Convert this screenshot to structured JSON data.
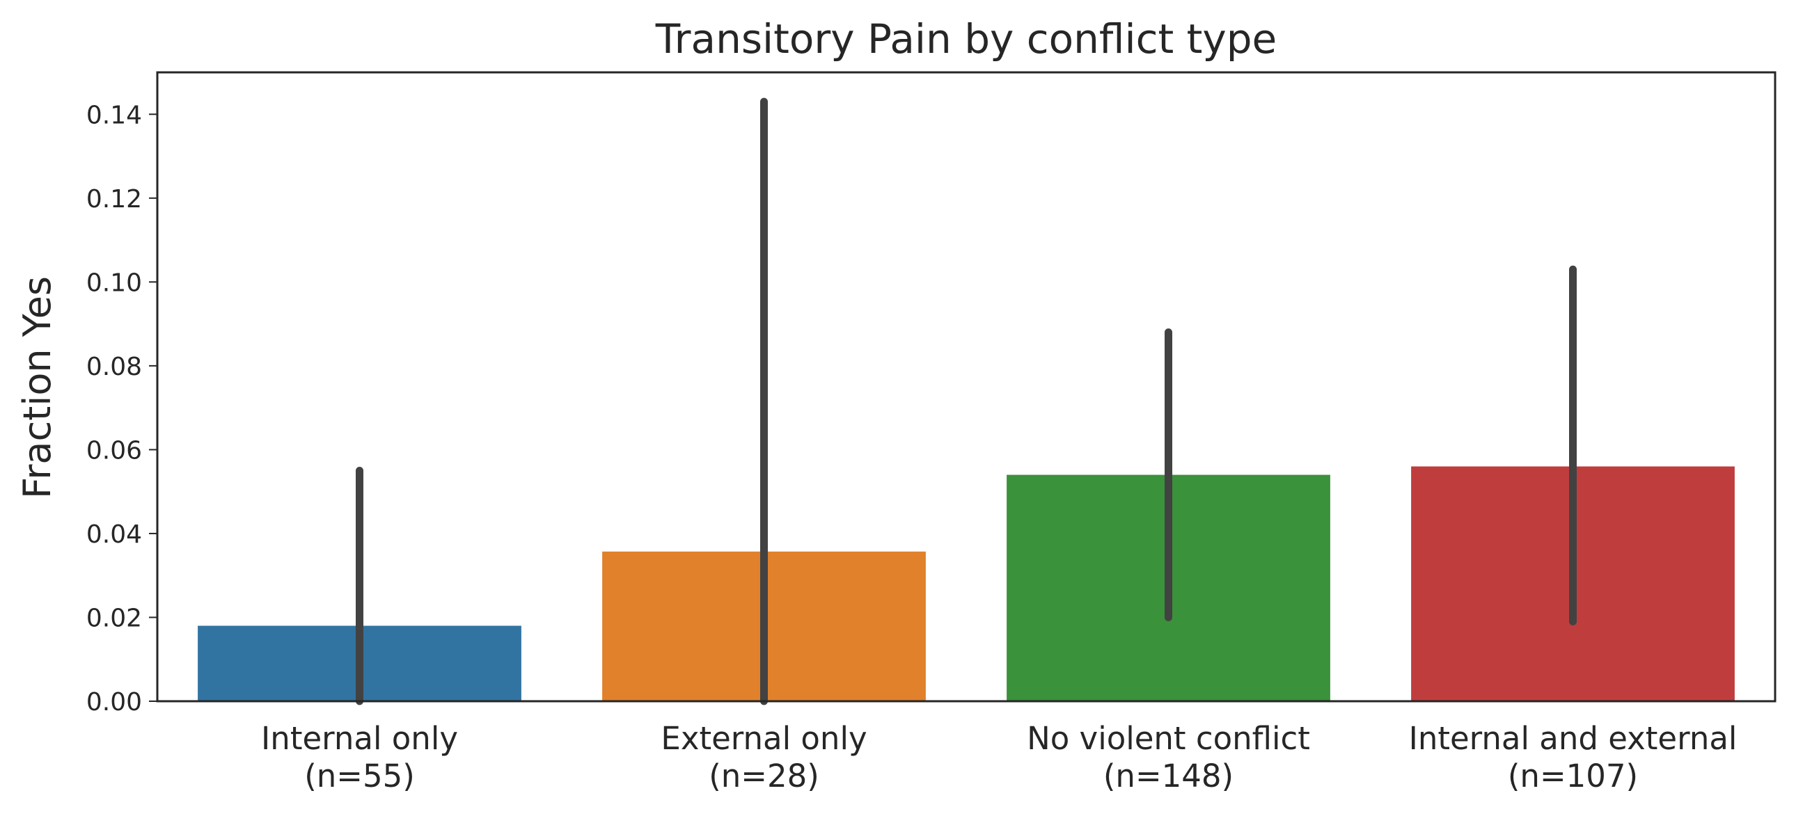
{
  "chart_data": {
    "type": "bar",
    "title": "Transitory Pain by conflict type",
    "xlabel": "",
    "ylabel": "Fraction Yes",
    "ylim": [
      0,
      0.15
    ],
    "yticks": [
      "0.00",
      "0.02",
      "0.04",
      "0.06",
      "0.08",
      "0.10",
      "0.12",
      "0.14"
    ],
    "grid": false,
    "categories": [
      {
        "label": "Internal only",
        "n_label": "(n=55)",
        "value": 0.018,
        "ci_low": 0.0,
        "ci_high": 0.055,
        "color": "#3274a1"
      },
      {
        "label": "External only",
        "n_label": "(n=28)",
        "value": 0.0357,
        "ci_low": 0.0,
        "ci_high": 0.143,
        "color": "#e1812c"
      },
      {
        "label": "No violent conflict",
        "n_label": "(n=148)",
        "value": 0.054,
        "ci_low": 0.02,
        "ci_high": 0.088,
        "color": "#3a923a"
      },
      {
        "label": "Internal and external",
        "n_label": "(n=107)",
        "value": 0.056,
        "ci_low": 0.019,
        "ci_high": 0.103,
        "color": "#c03d3e"
      }
    ]
  }
}
